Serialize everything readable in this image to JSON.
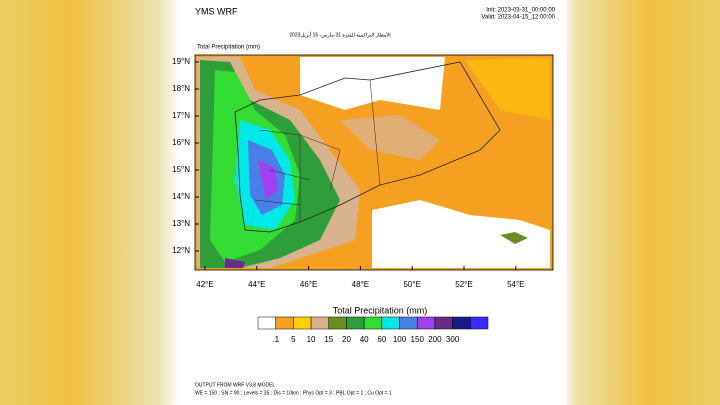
{
  "header": {
    "title": "YMS WRF",
    "init": "Init: 2023-03-31_00:00:00",
    "valid": "Valid: 2023-04-15_12:00:00",
    "subtitle": "الأمطار التراكمية للفترة 31 مارس- 15 أبريل2023"
  },
  "map": {
    "title": "Total Precipitation    (mm)",
    "lat_labels": [
      "19°N",
      "18°N",
      "17°N",
      "16°N",
      "15°N",
      "14°N",
      "13°N",
      "12°N"
    ],
    "lon_labels": [
      "42°E",
      "44°E",
      "46°E",
      "48°E",
      "50°E",
      "52°E",
      "54°E"
    ]
  },
  "colorbar": {
    "title": "Total Precipitation    (mm)",
    "colors": [
      "#ffffff",
      "#f5a020",
      "#ffd000",
      "#d9b38c",
      "#6b8e23",
      "#2e9e3a",
      "#33dd33",
      "#00e8e8",
      "#4a7fe8",
      "#a040f0",
      "#6a2a8a",
      "#1a1a80",
      "#3a2aff"
    ],
    "labels": [
      ".1",
      "5",
      "10",
      "15",
      "20",
      "40",
      "60",
      "100",
      "150",
      "200",
      "300"
    ]
  },
  "footer": {
    "lines": [
      "OUTPUT FROM WRF V3.8 MODEL",
      "WE = 150 ; SN = 90 ; Levels = 35 ; Dis = 10km ; Phys Opt = 3 ; PBL Opt = 1 ; Cu Opt = 1"
    ]
  }
}
